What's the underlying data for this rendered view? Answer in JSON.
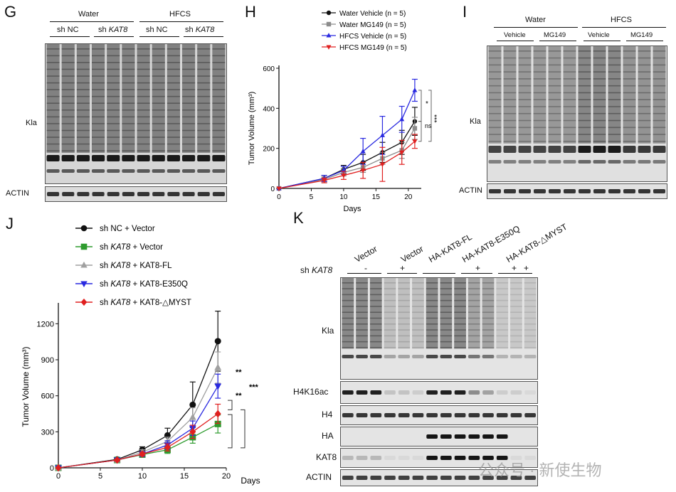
{
  "panels": {
    "G": {
      "letter": "G",
      "groups": [
        "Water",
        "HFCS"
      ],
      "subgroups": [
        "sh NC",
        "sh",
        "sh NC",
        "sh"
      ],
      "subgroup_italic": [
        "",
        "KAT8",
        "",
        "KAT8"
      ],
      "blot_labels": [
        "Kla",
        "ACTIN"
      ]
    },
    "H": {
      "letter": "H",
      "legend": [
        "Water Vehicle (n = 5)",
        "Water MG149 (n = 5)",
        "HFCS Vehicle (n = 5)",
        "HFCS MG149 (n = 5)"
      ],
      "sig": [
        "*",
        "ns",
        "***"
      ]
    },
    "I": {
      "letter": "I",
      "groups": [
        "Water",
        "HFCS"
      ],
      "subgroups": [
        "Vehicle",
        "MG149",
        "Vehicle",
        "MG149"
      ],
      "blot_labels": [
        "Kla",
        "ACTIN"
      ]
    },
    "J": {
      "letter": "J",
      "legend_prefix": [
        "sh NC + Vector",
        "sh",
        "sh",
        "sh",
        "sh"
      ],
      "legend_italic": [
        "",
        "KAT8",
        "KAT8",
        "KAT8",
        "KAT8"
      ],
      "legend_suffix": [
        "",
        " + Vector",
        " + KAT8-FL",
        " + KAT8-E350Q",
        " + KAT8-△MYST"
      ],
      "sig": [
        "**",
        "**",
        "***"
      ]
    },
    "K": {
      "letter": "K",
      "col_labels": [
        "Vector",
        "Vector",
        "HA-KAT8-FL",
        "HA-KAT8-E350Q",
        "HA-KAT8-△MYST"
      ],
      "sh_label": "sh",
      "sh_italic": "KAT8",
      "sh_signs": [
        "-",
        "+",
        "+",
        "+",
        "+"
      ],
      "blot_labels": [
        "Kla",
        "H4K16ac",
        "H4",
        "HA",
        "KAT8",
        "ACTIN"
      ]
    }
  },
  "watermark": "公众号 · 新使生物",
  "chart_data": [
    {
      "type": "line",
      "panel": "H",
      "xlabel": "Days",
      "ylabel": "Tumor Volume (mm³)",
      "xlim": [
        0,
        22
      ],
      "ylim": [
        0,
        600
      ],
      "xticks": [
        0,
        5,
        10,
        15,
        20
      ],
      "yticks": [
        0,
        200,
        400,
        600
      ],
      "x": [
        0,
        7,
        10,
        13,
        16,
        19,
        21
      ],
      "series": [
        {
          "name": "Water Vehicle (n = 5)",
          "color": "#111111",
          "marker": "circle",
          "values": [
            0,
            50,
            95,
            130,
            180,
            230,
            335
          ],
          "err": [
            0,
            15,
            20,
            40,
            50,
            60,
            70
          ]
        },
        {
          "name": "Water MG149 (n = 5)",
          "color": "#8c8c8c",
          "marker": "square",
          "values": [
            0,
            45,
            80,
            105,
            150,
            190,
            300
          ],
          "err": [
            0,
            12,
            18,
            25,
            30,
            40,
            55
          ]
        },
        {
          "name": "HFCS Vehicle (n = 5)",
          "color": "#2a2ae0",
          "marker": "triangle",
          "values": [
            0,
            50,
            90,
            185,
            265,
            345,
            490
          ],
          "err": [
            0,
            15,
            20,
            65,
            95,
            65,
            55
          ]
        },
        {
          "name": "HFCS MG149 (n = 5)",
          "color": "#e02020",
          "marker": "triangle-down",
          "values": [
            0,
            40,
            65,
            90,
            120,
            180,
            235
          ],
          "err": [
            0,
            12,
            20,
            40,
            85,
            60,
            35
          ]
        }
      ]
    },
    {
      "type": "line",
      "panel": "J",
      "xlabel": "Days",
      "ylabel": "Tumor Volume (mm³)",
      "xlim": [
        0,
        20
      ],
      "ylim": [
        0,
        1350
      ],
      "xticks": [
        0,
        5,
        10,
        15,
        20
      ],
      "yticks": [
        0,
        300,
        600,
        900,
        1200
      ],
      "x": [
        0,
        7,
        10,
        13,
        16,
        19
      ],
      "series": [
        {
          "name": "sh NC + Vector",
          "color": "#111111",
          "marker": "circle",
          "values": [
            0,
            70,
            150,
            270,
            525,
            1055
          ],
          "err": [
            0,
            15,
            25,
            60,
            190,
            250
          ]
        },
        {
          "name": "sh KAT8 + Vector",
          "color": "#2e9b2e",
          "marker": "square",
          "values": [
            0,
            65,
            110,
            150,
            255,
            365
          ],
          "err": [
            0,
            10,
            20,
            30,
            50,
            75
          ]
        },
        {
          "name": "sh KAT8 + KAT8-FL",
          "color": "#a0a0a0",
          "marker": "triangle",
          "values": [
            0,
            65,
            130,
            220,
            420,
            835
          ],
          "err": [
            0,
            10,
            20,
            35,
            80,
            130
          ]
        },
        {
          "name": "sh KAT8 + KAT8-E350Q",
          "color": "#2a2ae0",
          "marker": "triangle-down",
          "values": [
            0,
            65,
            115,
            190,
            330,
            680
          ],
          "err": [
            0,
            10,
            20,
            35,
            60,
            100
          ]
        },
        {
          "name": "sh KAT8 + KAT8-△MYST",
          "color": "#e02020",
          "marker": "diamond",
          "values": [
            0,
            65,
            115,
            170,
            300,
            450
          ],
          "err": [
            0,
            10,
            15,
            30,
            55,
            80
          ]
        }
      ]
    }
  ]
}
